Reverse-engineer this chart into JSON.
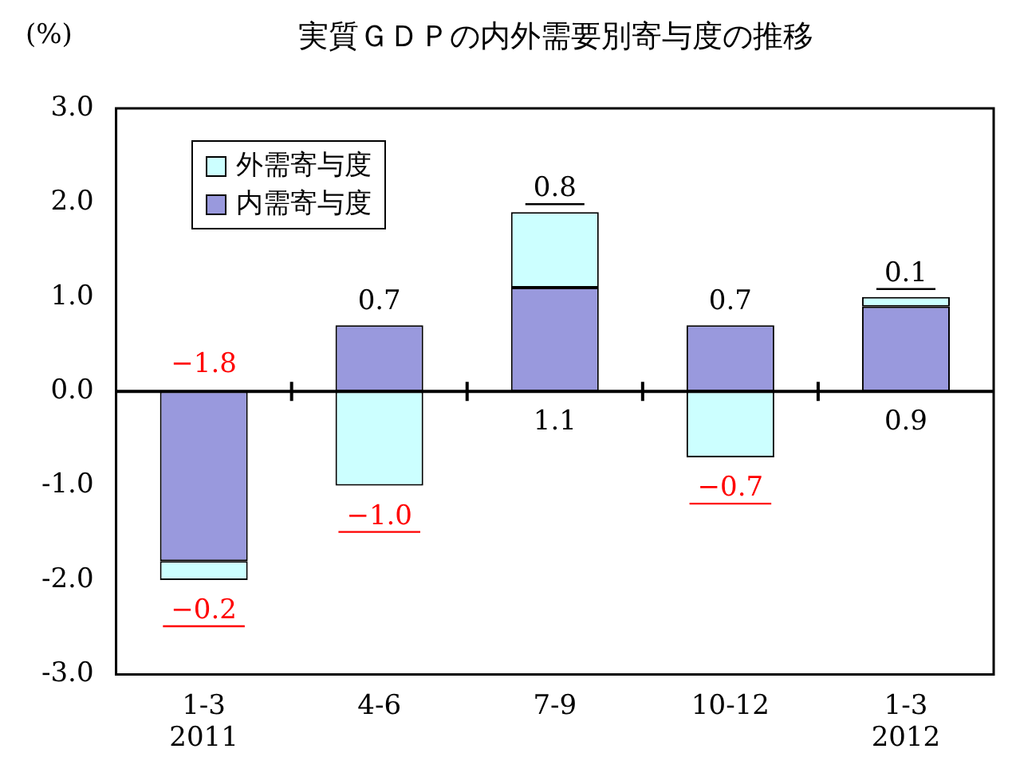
{
  "chart_data": {
    "type": "bar",
    "title": "実質ＧＤＰの内外需要別寄与度の推移",
    "ylabel": "(%)",
    "categories": [
      "1-3\n2011",
      "4-6",
      "7-9",
      "10-12",
      "1-3\n2012"
    ],
    "stacked": true,
    "series": [
      {
        "name": "内需寄与度",
        "color": "#9999dd",
        "values": [
          -1.8,
          0.7,
          1.1,
          0.7,
          0.9
        ],
        "value_labels": [
          "−1.8",
          "0.7",
          "1.1",
          "0.7",
          "0.9"
        ]
      },
      {
        "name": "外需寄与度",
        "color": "#ccffff",
        "values": [
          -0.2,
          -1.0,
          0.8,
          -0.7,
          0.1
        ],
        "value_labels": [
          "−0.2",
          "−1.0",
          "0.8",
          "−0.7",
          "0.1"
        ]
      }
    ],
    "ylim": [
      -3,
      3
    ],
    "yticks": [
      {
        "value": -3,
        "label": "-3.0"
      },
      {
        "value": -2,
        "label": "-2.0"
      },
      {
        "value": -1,
        "label": "-1.0"
      },
      {
        "value": 0,
        "label": "0.0"
      },
      {
        "value": 1,
        "label": "1.0"
      },
      {
        "value": 2,
        "label": "2.0"
      },
      {
        "value": 3,
        "label": "3.0"
      }
    ],
    "legend": "top left"
  }
}
